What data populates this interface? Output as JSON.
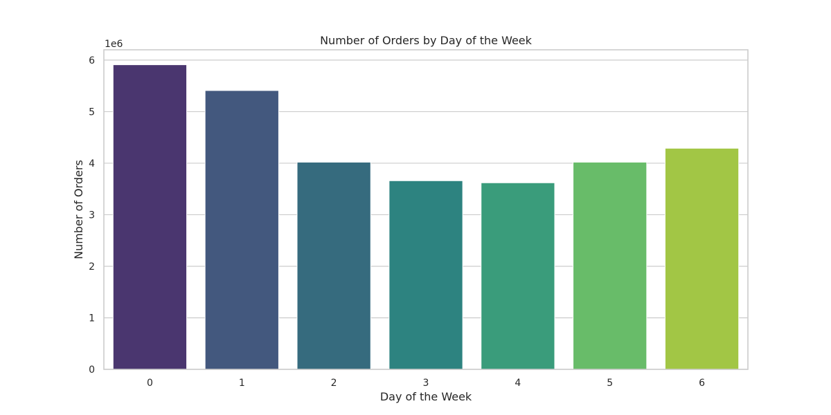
{
  "chart_data": {
    "type": "bar",
    "title": "Number of Orders by Day of the Week",
    "xlabel": "Day of the Week",
    "ylabel": "Number of Orders",
    "y_offset_label": "1e6",
    "categories": [
      "0",
      "1",
      "2",
      "3",
      "4",
      "5",
      "6"
    ],
    "values": [
      5910000,
      5410000,
      4020000,
      3660000,
      3620000,
      4020000,
      4290000
    ],
    "ylim": [
      0,
      6200000
    ],
    "yticks": [
      0,
      1000000,
      2000000,
      3000000,
      4000000,
      5000000,
      6000000
    ],
    "ytick_labels": [
      "0",
      "1",
      "2",
      "3",
      "4",
      "5",
      "6"
    ],
    "grid": "horizontal",
    "colors": [
      "#4a366f",
      "#43587e",
      "#366b7e",
      "#2d8380",
      "#3a9c7b",
      "#68bc69",
      "#a2c645"
    ]
  }
}
